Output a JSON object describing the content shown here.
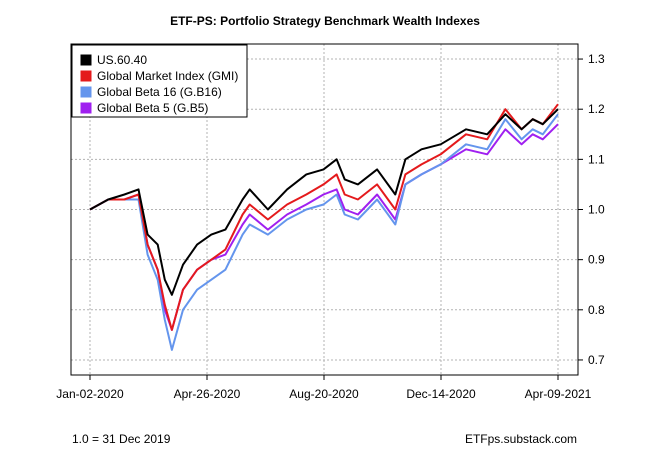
{
  "chart_data": {
    "type": "line",
    "title": "ETF-PS: Portfolio Strategy Benchmark Wealth Indexes",
    "xlabel": "",
    "ylabel": "",
    "x_tick_labels": [
      "Jan-02-2020",
      "Apr-26-2020",
      "Aug-20-2020",
      "Dec-14-2020",
      "Apr-09-2021"
    ],
    "y_ticks": [
      "0.7",
      "0.8",
      "0.9",
      "1.0",
      "1.1",
      "1.2",
      "1.3"
    ],
    "ylim": [
      0.67,
      1.33
    ],
    "xlim": [
      "2020-01-02",
      "2021-04-09"
    ],
    "grid": true,
    "legend_position": "top-left",
    "x": [
      "2020-01-02",
      "2020-01-20",
      "2020-02-05",
      "2020-02-19",
      "2020-02-28",
      "2020-03-09",
      "2020-03-16",
      "2020-03-23",
      "2020-04-03",
      "2020-04-17",
      "2020-05-01",
      "2020-05-15",
      "2020-06-01",
      "2020-06-08",
      "2020-06-26",
      "2020-07-15",
      "2020-08-03",
      "2020-08-20",
      "2020-09-02",
      "2020-09-10",
      "2020-09-23",
      "2020-10-12",
      "2020-10-30",
      "2020-11-09",
      "2020-11-25",
      "2020-12-14",
      "2021-01-08",
      "2021-01-29",
      "2021-02-16",
      "2021-03-04",
      "2021-03-15",
      "2021-03-25",
      "2021-04-09"
    ],
    "series": [
      {
        "name": "US.60.40",
        "color": "#000000",
        "values": [
          1.0,
          1.02,
          1.03,
          1.04,
          0.95,
          0.93,
          0.86,
          0.83,
          0.89,
          0.93,
          0.95,
          0.96,
          1.02,
          1.04,
          1.0,
          1.04,
          1.07,
          1.08,
          1.1,
          1.06,
          1.05,
          1.08,
          1.03,
          1.1,
          1.12,
          1.13,
          1.16,
          1.15,
          1.19,
          1.16,
          1.18,
          1.17,
          1.2
        ]
      },
      {
        "name": "Global Market Index (GMI)",
        "color": "#e41a1c",
        "values": [
          1.0,
          1.02,
          1.02,
          1.03,
          0.93,
          0.88,
          0.81,
          0.76,
          0.84,
          0.88,
          0.9,
          0.92,
          0.99,
          1.01,
          0.98,
          1.01,
          1.03,
          1.05,
          1.07,
          1.03,
          1.02,
          1.05,
          1.0,
          1.07,
          1.09,
          1.11,
          1.15,
          1.14,
          1.2,
          1.16,
          1.18,
          1.17,
          1.21
        ]
      },
      {
        "name": "Global Beta 16 (G.B16)",
        "color": "#6495ed",
        "values": [
          1.0,
          1.02,
          1.02,
          1.02,
          0.91,
          0.86,
          0.78,
          0.72,
          0.8,
          0.84,
          0.86,
          0.88,
          0.95,
          0.97,
          0.95,
          0.98,
          1.0,
          1.01,
          1.03,
          0.99,
          0.98,
          1.02,
          0.97,
          1.05,
          1.07,
          1.09,
          1.13,
          1.12,
          1.18,
          1.14,
          1.16,
          1.15,
          1.19
        ]
      },
      {
        "name": "Global Beta 5 (G.B5)",
        "color": "#a020f0",
        "values": [
          1.0,
          1.02,
          1.02,
          1.03,
          0.93,
          0.88,
          0.8,
          0.76,
          0.84,
          0.88,
          0.9,
          0.91,
          0.97,
          0.99,
          0.96,
          0.99,
          1.01,
          1.03,
          1.04,
          1.0,
          0.99,
          1.03,
          0.98,
          1.05,
          1.07,
          1.09,
          1.12,
          1.11,
          1.16,
          1.13,
          1.15,
          1.14,
          1.17
        ]
      }
    ]
  },
  "footer": {
    "left": "1.0 = 31 Dec 2019",
    "right": "ETFps.substack.com"
  }
}
